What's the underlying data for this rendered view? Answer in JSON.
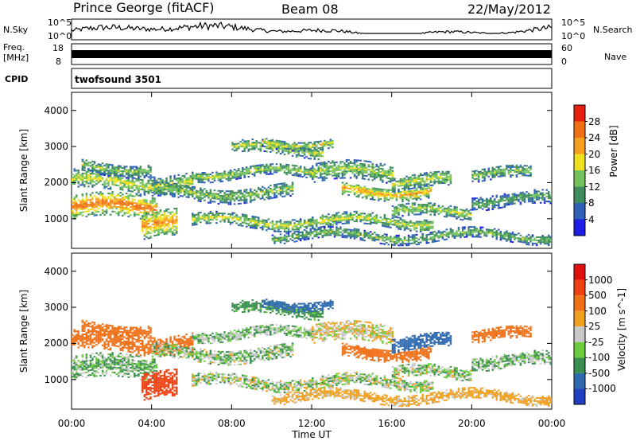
{
  "header": {
    "station": "Prince George (fitACF)",
    "beam": "Beam 08",
    "date": "22/May/2012"
  },
  "top_panels": {
    "nsky_label": "N.Sky",
    "nsky_hi": "10^5",
    "nsky_lo": "10^0",
    "nsearch_label": "N.Search",
    "nsearch_hi": "10^5",
    "nsearch_lo": "10^0",
    "freq_label": "Freq.",
    "freq_unit": "[MHz]",
    "freq_hi": "18",
    "freq_lo": "8",
    "nave_label": "Nave",
    "nave_hi": "60",
    "nave_lo": "0",
    "cpid_label": "CPID",
    "cpid_value": "twofsound 3501"
  },
  "chart_data": [
    {
      "type": "heatmap",
      "title": "",
      "ylabel": "Slant Range [km]",
      "xlabel": "",
      "ylim": [
        180,
        4500
      ],
      "y_ticks": [
        "1000",
        "2000",
        "3000",
        "4000"
      ],
      "colorbar_label": "Power [dB]",
      "colorbar_ticks": [
        "4",
        "8",
        "12",
        "16",
        "20",
        "24",
        "28"
      ],
      "colorbar_colors": [
        "#1e1ee6",
        "#2f62b6",
        "#3f8c5c",
        "#74c25e",
        "#f0e020",
        "#f5a020",
        "#f07018",
        "#e82010"
      ]
    },
    {
      "type": "heatmap",
      "title": "",
      "ylabel": "Slant Range [km]",
      "xlabel": "Time UT",
      "ylim": [
        180,
        4500
      ],
      "y_ticks": [
        "1000",
        "2000",
        "3000",
        "4000"
      ],
      "x_ticks": [
        "00:00",
        "04:00",
        "08:00",
        "12:00",
        "16:00",
        "20:00",
        "00:00"
      ],
      "colorbar_label": "Velocity [m s^-1]",
      "colorbar_ticks": [
        "1000",
        "500",
        "100",
        "25",
        "-25",
        "-100",
        "-500",
        "-1000"
      ],
      "colorbar_colors": [
        "#2040c0",
        "#2f6ab0",
        "#3a8f50",
        "#6ccc3c",
        "#c8c8c8",
        "#f0a020",
        "#f07018",
        "#ee4010",
        "#e01010"
      ]
    }
  ]
}
